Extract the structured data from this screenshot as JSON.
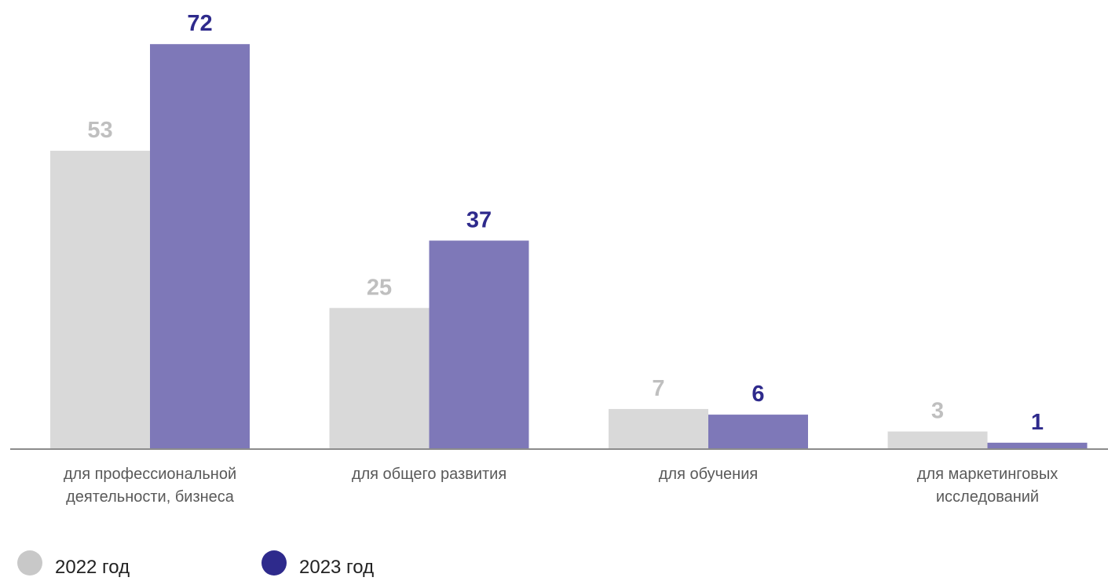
{
  "chart_data": {
    "type": "bar",
    "categories": [
      [
        "для профессиональной",
        "деятельности, бизнеса"
      ],
      [
        "для общего развития"
      ],
      [
        "для обучения"
      ],
      [
        "для маркетинговых",
        "исследований"
      ]
    ],
    "series": [
      {
        "name": "2022 год",
        "color": "#d9d9d9",
        "label_color": "#bfbfbf",
        "values": [
          53,
          25,
          7,
          3
        ]
      },
      {
        "name": "2023 год",
        "color": "#7e78b8",
        "label_color": "#2e2a8c",
        "values": [
          72,
          37,
          6,
          1
        ]
      }
    ],
    "title": "",
    "xlabel": "",
    "ylabel": "",
    "ylim": [
      0,
      72
    ],
    "grid": false,
    "legend_position": "bottom-left"
  },
  "legend": [
    {
      "label": "2022 год",
      "color": "#c8c8c8"
    },
    {
      "label": "2023 год",
      "color": "#2e2a8c"
    }
  ]
}
